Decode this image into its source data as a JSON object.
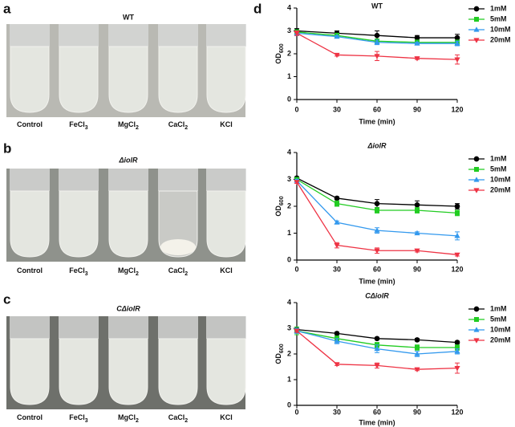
{
  "panel_labels": [
    "a",
    "b",
    "c",
    "d"
  ],
  "photos": [
    {
      "title": "WT",
      "title_italic": false,
      "tubes": [
        {
          "text": "Control"
        },
        {
          "text": "FeCl",
          "sub": "3"
        },
        {
          "text": "MgCl",
          "sub": "2"
        },
        {
          "text": "CaCl",
          "sub": "2"
        },
        {
          "text": "KCl"
        }
      ]
    },
    {
      "title": "ΔiolR",
      "title_italic": true,
      "tubes": [
        {
          "text": "Control"
        },
        {
          "text": "FeCl",
          "sub": "3"
        },
        {
          "text": "MgCl",
          "sub": "2"
        },
        {
          "text": "CaCl",
          "sub": "2"
        },
        {
          "text": "KCl"
        }
      ]
    },
    {
      "title": "CΔiolR",
      "title_italic": true,
      "tubes": [
        {
          "text": "Control"
        },
        {
          "text": "FeCl",
          "sub": "3"
        },
        {
          "text": "MgCl",
          "sub": "2"
        },
        {
          "text": "CaCl",
          "sub": "2"
        },
        {
          "text": "KCl"
        }
      ]
    }
  ],
  "chart_data": [
    {
      "type": "line",
      "title": "WT",
      "title_italic": false,
      "xlabel": "Time (min)",
      "ylabel": "OD",
      "ylabel_sub": "600",
      "x": [
        0,
        30,
        60,
        90,
        120
      ],
      "xlim": [
        0,
        120
      ],
      "xticks": [
        0,
        30,
        60,
        90,
        120
      ],
      "ylim": [
        0,
        4
      ],
      "yticks": [
        0,
        1,
        2,
        3,
        4
      ],
      "series": [
        {
          "name": "1mM",
          "color": "#000000",
          "marker": "circle",
          "values": [
            3.0,
            2.9,
            2.8,
            2.7,
            2.7
          ],
          "errors": [
            0.1,
            0.1,
            0.2,
            0.1,
            0.15
          ]
        },
        {
          "name": "5mM",
          "color": "#22cc22",
          "marker": "square",
          "values": [
            2.95,
            2.8,
            2.55,
            2.5,
            2.5
          ],
          "errors": [
            0.1,
            0.1,
            0.1,
            0.1,
            0.1
          ]
        },
        {
          "name": "10mM",
          "color": "#3399ee",
          "marker": "triangle-up",
          "values": [
            2.9,
            2.75,
            2.5,
            2.45,
            2.45
          ],
          "errors": [
            0.1,
            0.05,
            0.1,
            0.05,
            0.1
          ]
        },
        {
          "name": "20mM",
          "color": "#ee3344",
          "marker": "triangle-down",
          "values": [
            2.9,
            1.95,
            1.9,
            1.8,
            1.75
          ],
          "errors": [
            0.1,
            0.05,
            0.2,
            0.05,
            0.2
          ]
        }
      ]
    },
    {
      "type": "line",
      "title": "ΔiolR",
      "title_italic": true,
      "xlabel": "Time (min)",
      "ylabel": "OD",
      "ylabel_sub": "600",
      "x": [
        0,
        30,
        60,
        90,
        120
      ],
      "xlim": [
        0,
        120
      ],
      "xticks": [
        0,
        30,
        60,
        90,
        120
      ],
      "ylim": [
        0,
        4
      ],
      "yticks": [
        0,
        1,
        2,
        3,
        4
      ],
      "series": [
        {
          "name": "1mM",
          "color": "#000000",
          "marker": "circle",
          "values": [
            3.05,
            2.3,
            2.1,
            2.05,
            2.0
          ],
          "errors": [
            0.05,
            0.05,
            0.15,
            0.15,
            0.1
          ]
        },
        {
          "name": "5mM",
          "color": "#22cc22",
          "marker": "square",
          "values": [
            3.0,
            2.1,
            1.85,
            1.85,
            1.75
          ],
          "errors": [
            0.05,
            0.1,
            0.1,
            0.1,
            0.1
          ]
        },
        {
          "name": "10mM",
          "color": "#3399ee",
          "marker": "triangle-up",
          "values": [
            2.95,
            1.4,
            1.1,
            1.0,
            0.9
          ],
          "errors": [
            0.05,
            0.05,
            0.1,
            0.05,
            0.15
          ]
        },
        {
          "name": "20mM",
          "color": "#ee3344",
          "marker": "triangle-down",
          "values": [
            2.9,
            0.55,
            0.35,
            0.35,
            0.2
          ],
          "errors": [
            0.05,
            0.1,
            0.1,
            0.05,
            0.05
          ]
        }
      ]
    },
    {
      "type": "line",
      "title": "CΔiolR",
      "title_italic": true,
      "xlabel": "Time (min)",
      "ylabel": "OD",
      "ylabel_sub": "600",
      "x": [
        0,
        30,
        60,
        90,
        120
      ],
      "xlim": [
        0,
        120
      ],
      "xticks": [
        0,
        30,
        60,
        90,
        120
      ],
      "ylim": [
        0,
        4
      ],
      "yticks": [
        0,
        1,
        2,
        3,
        4
      ],
      "series": [
        {
          "name": "1mM",
          "color": "#000000",
          "marker": "circle",
          "values": [
            2.95,
            2.8,
            2.6,
            2.55,
            2.45
          ],
          "errors": [
            0.05,
            0.05,
            0.05,
            0.05,
            0.05
          ]
        },
        {
          "name": "5mM",
          "color": "#22cc22",
          "marker": "square",
          "values": [
            2.9,
            2.6,
            2.35,
            2.25,
            2.25
          ],
          "errors": [
            0.15,
            0.1,
            0.1,
            0.1,
            0.1
          ]
        },
        {
          "name": "10mM",
          "color": "#3399ee",
          "marker": "triangle-up",
          "values": [
            2.9,
            2.5,
            2.2,
            2.0,
            2.1
          ],
          "errors": [
            0.1,
            0.1,
            0.15,
            0.1,
            0.1
          ]
        },
        {
          "name": "20mM",
          "color": "#ee3344",
          "marker": "triangle-down",
          "values": [
            2.9,
            1.6,
            1.55,
            1.4,
            1.45
          ],
          "errors": [
            0.05,
            0.05,
            0.1,
            0.05,
            0.2
          ]
        }
      ]
    }
  ]
}
